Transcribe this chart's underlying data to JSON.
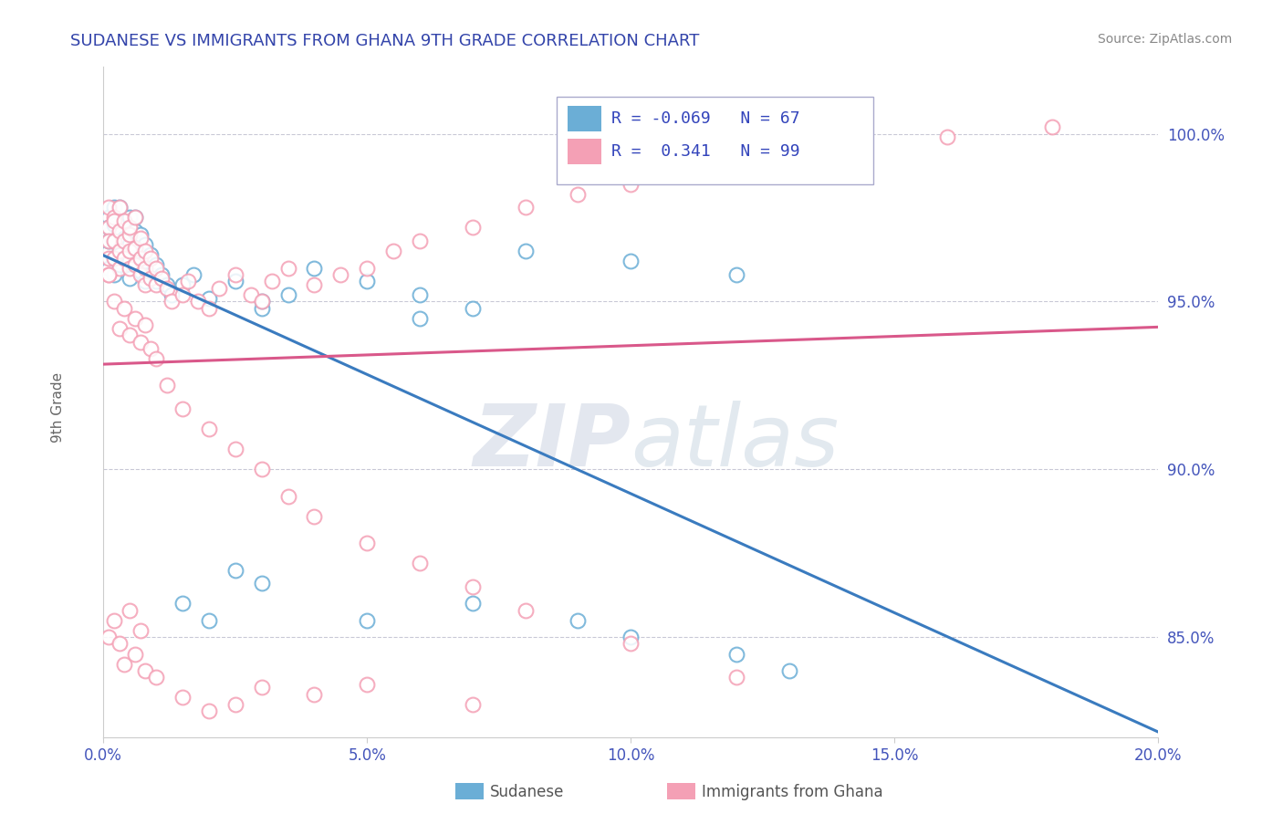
{
  "title": "SUDANESE VS IMMIGRANTS FROM GHANA 9TH GRADE CORRELATION CHART",
  "source": "Source: ZipAtlas.com",
  "ylabel": "9th Grade",
  "legend_label1": "Sudanese",
  "legend_label2": "Immigrants from Ghana",
  "R1": -0.069,
  "N1": 67,
  "R2": 0.341,
  "N2": 99,
  "color_blue": "#6baed6",
  "color_pink": "#f4a0b5",
  "color_blue_line": "#3a7bbf",
  "color_pink_line": "#d9588a",
  "xlim": [
    0.0,
    0.2
  ],
  "ylim": [
    0.82,
    1.02
  ],
  "xtick_vals": [
    0.0,
    0.05,
    0.1,
    0.15,
    0.2
  ],
  "ytick_vals": [
    0.85,
    0.9,
    0.95,
    1.0
  ],
  "xticklabels": [
    "0.0%",
    "5.0%",
    "10.0%",
    "15.0%",
    "20.0%"
  ],
  "yticklabels": [
    "85.0%",
    "90.0%",
    "95.0%",
    "100.0%"
  ],
  "watermark_zip": "ZIP",
  "watermark_atlas": "atlas",
  "blue_x": [
    0.001,
    0.001,
    0.001,
    0.001,
    0.001,
    0.001,
    0.002,
    0.002,
    0.002,
    0.002,
    0.002,
    0.003,
    0.003,
    0.003,
    0.003,
    0.003,
    0.004,
    0.004,
    0.004,
    0.004,
    0.005,
    0.005,
    0.005,
    0.005,
    0.005,
    0.006,
    0.006,
    0.006,
    0.006,
    0.007,
    0.007,
    0.007,
    0.008,
    0.008,
    0.008,
    0.009,
    0.009,
    0.01,
    0.01,
    0.011,
    0.012,
    0.013,
    0.015,
    0.017,
    0.02,
    0.025,
    0.03,
    0.035,
    0.04,
    0.05,
    0.06,
    0.07,
    0.08,
    0.1,
    0.12,
    0.015,
    0.02,
    0.025,
    0.03,
    0.05,
    0.07,
    0.09,
    0.1,
    0.12,
    0.13,
    0.03,
    0.06
  ],
  "blue_y": [
    0.97,
    0.965,
    0.96,
    0.975,
    0.972,
    0.968,
    0.973,
    0.968,
    0.963,
    0.958,
    0.978,
    0.971,
    0.966,
    0.961,
    0.978,
    0.964,
    0.969,
    0.963,
    0.974,
    0.968,
    0.972,
    0.967,
    0.962,
    0.957,
    0.975,
    0.971,
    0.966,
    0.961,
    0.975,
    0.97,
    0.964,
    0.959,
    0.967,
    0.962,
    0.956,
    0.964,
    0.958,
    0.961,
    0.956,
    0.958,
    0.955,
    0.952,
    0.955,
    0.958,
    0.951,
    0.956,
    0.948,
    0.952,
    0.96,
    0.956,
    0.952,
    0.948,
    0.965,
    0.962,
    0.958,
    0.86,
    0.855,
    0.87,
    0.866,
    0.855,
    0.86,
    0.855,
    0.85,
    0.845,
    0.84,
    0.95,
    0.945
  ],
  "pink_x": [
    0.001,
    0.001,
    0.001,
    0.001,
    0.001,
    0.002,
    0.002,
    0.002,
    0.002,
    0.003,
    0.003,
    0.003,
    0.003,
    0.004,
    0.004,
    0.004,
    0.005,
    0.005,
    0.005,
    0.005,
    0.006,
    0.006,
    0.006,
    0.007,
    0.007,
    0.007,
    0.008,
    0.008,
    0.008,
    0.009,
    0.009,
    0.01,
    0.01,
    0.011,
    0.012,
    0.013,
    0.015,
    0.016,
    0.018,
    0.02,
    0.022,
    0.025,
    0.028,
    0.03,
    0.032,
    0.035,
    0.04,
    0.045,
    0.05,
    0.055,
    0.06,
    0.07,
    0.08,
    0.09,
    0.1,
    0.11,
    0.12,
    0.14,
    0.16,
    0.18,
    0.001,
    0.002,
    0.003,
    0.004,
    0.005,
    0.006,
    0.007,
    0.008,
    0.009,
    0.01,
    0.012,
    0.015,
    0.02,
    0.025,
    0.03,
    0.035,
    0.04,
    0.05,
    0.06,
    0.07,
    0.08,
    0.1,
    0.12,
    0.001,
    0.002,
    0.003,
    0.004,
    0.005,
    0.006,
    0.007,
    0.008,
    0.01,
    0.015,
    0.02,
    0.025,
    0.03,
    0.04,
    0.05,
    0.07
  ],
  "pink_y": [
    0.972,
    0.968,
    0.963,
    0.978,
    0.958,
    0.975,
    0.968,
    0.963,
    0.974,
    0.971,
    0.965,
    0.978,
    0.96,
    0.968,
    0.974,
    0.963,
    0.97,
    0.965,
    0.96,
    0.972,
    0.966,
    0.961,
    0.975,
    0.969,
    0.963,
    0.958,
    0.965,
    0.96,
    0.955,
    0.963,
    0.957,
    0.96,
    0.955,
    0.957,
    0.954,
    0.95,
    0.952,
    0.956,
    0.95,
    0.948,
    0.954,
    0.958,
    0.952,
    0.95,
    0.956,
    0.96,
    0.955,
    0.958,
    0.96,
    0.965,
    0.968,
    0.972,
    0.978,
    0.982,
    0.985,
    0.988,
    0.992,
    0.996,
    0.999,
    1.002,
    0.958,
    0.95,
    0.942,
    0.948,
    0.94,
    0.945,
    0.938,
    0.943,
    0.936,
    0.933,
    0.925,
    0.918,
    0.912,
    0.906,
    0.9,
    0.892,
    0.886,
    0.878,
    0.872,
    0.865,
    0.858,
    0.848,
    0.838,
    0.85,
    0.855,
    0.848,
    0.842,
    0.858,
    0.845,
    0.852,
    0.84,
    0.838,
    0.832,
    0.828,
    0.83,
    0.835,
    0.833,
    0.836,
    0.83
  ]
}
